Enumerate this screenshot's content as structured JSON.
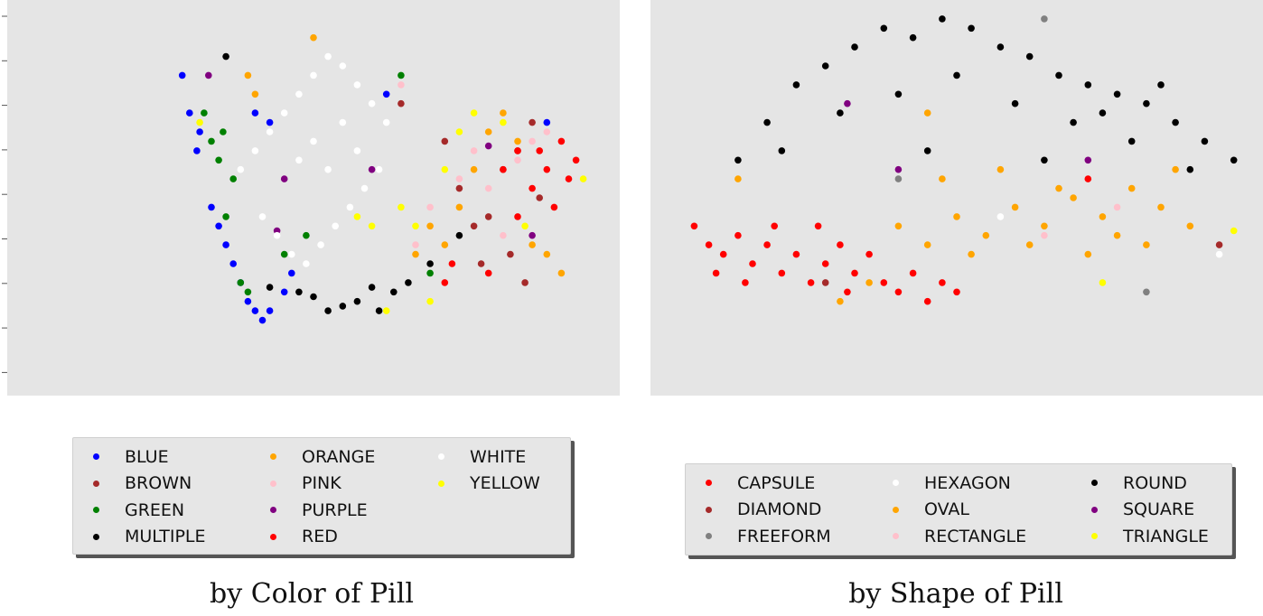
{
  "chart_data": [
    {
      "type": "scatter",
      "title": "by Color of Pill",
      "legend_placement": "below",
      "grid": false,
      "y_ticks_labeled": false,
      "series": [
        {
          "name": "BLUE",
          "color": "#0000ff",
          "points": [
            [
              -0.9,
              -1.3
            ],
            [
              -0.85,
              -0.9
            ],
            [
              -0.8,
              -0.5
            ],
            [
              -0.78,
              -0.7
            ],
            [
              -0.7,
              0.1
            ],
            [
              -0.65,
              0.3
            ],
            [
              -0.6,
              0.5
            ],
            [
              -0.55,
              0.7
            ],
            [
              -0.5,
              0.9
            ],
            [
              -0.45,
              1.1
            ],
            [
              -0.4,
              1.2
            ],
            [
              -0.35,
              1.3
            ],
            [
              -0.3,
              1.2
            ],
            [
              -0.3,
              -0.8
            ],
            [
              -0.4,
              -0.9
            ],
            [
              -0.2,
              1.0
            ],
            [
              -0.15,
              0.8
            ],
            [
              0.5,
              -1.1
            ],
            [
              1.6,
              -0.8
            ]
          ]
        },
        {
          "name": "BROWN",
          "color": "#a52a2a",
          "points": [
            [
              0.6,
              -1.0
            ],
            [
              0.9,
              -0.6
            ],
            [
              1.0,
              -0.1
            ],
            [
              1.1,
              0.3
            ],
            [
              1.15,
              0.7
            ],
            [
              1.2,
              0.2
            ],
            [
              1.3,
              -0.3
            ],
            [
              1.35,
              0.6
            ],
            [
              1.4,
              -0.5
            ],
            [
              1.45,
              0.9
            ],
            [
              1.5,
              -0.8
            ],
            [
              1.55,
              0.0
            ]
          ]
        },
        {
          "name": "GREEN",
          "color": "#008000",
          "points": [
            [
              -0.75,
              -0.9
            ],
            [
              -0.7,
              -0.6
            ],
            [
              -0.65,
              -0.4
            ],
            [
              -0.62,
              -0.7
            ],
            [
              -0.55,
              -0.2
            ],
            [
              -0.6,
              0.2
            ],
            [
              -0.5,
              0.9
            ],
            [
              -0.45,
              1.0
            ],
            [
              -0.2,
              0.6
            ],
            [
              -0.05,
              0.4
            ],
            [
              0.6,
              -1.3
            ],
            [
              0.8,
              0.8
            ]
          ]
        },
        {
          "name": "MULTIPLE",
          "color": "#000000",
          "points": [
            [
              -0.6,
              -1.5
            ],
            [
              -0.3,
              0.95
            ],
            [
              -0.1,
              1.0
            ],
            [
              0.0,
              1.05
            ],
            [
              0.1,
              1.2
            ],
            [
              0.2,
              1.15
            ],
            [
              0.3,
              1.1
            ],
            [
              0.4,
              0.95
            ],
            [
              0.45,
              1.2
            ],
            [
              0.55,
              1.0
            ],
            [
              0.65,
              0.9
            ],
            [
              0.8,
              0.7
            ],
            [
              1.0,
              0.4
            ]
          ]
        },
        {
          "name": "ORANGE",
          "color": "#ffa500",
          "points": [
            [
              -0.45,
              -1.3
            ],
            [
              -0.4,
              -1.1
            ],
            [
              0.0,
              -1.7
            ],
            [
              0.7,
              0.6
            ],
            [
              0.8,
              0.3
            ],
            [
              0.9,
              0.5
            ],
            [
              1.0,
              0.1
            ],
            [
              1.1,
              -0.3
            ],
            [
              1.2,
              -0.7
            ],
            [
              1.3,
              -0.9
            ],
            [
              1.4,
              -0.6
            ],
            [
              1.5,
              0.5
            ],
            [
              1.6,
              0.6
            ],
            [
              1.7,
              0.8
            ]
          ]
        },
        {
          "name": "PINK",
          "color": "#ffc0cb",
          "points": [
            [
              0.6,
              -1.2
            ],
            [
              0.7,
              0.5
            ],
            [
              0.8,
              0.1
            ],
            [
              1.0,
              -0.2
            ],
            [
              1.1,
              -0.5
            ],
            [
              1.2,
              -0.1
            ],
            [
              1.3,
              0.4
            ],
            [
              1.4,
              -0.4
            ],
            [
              1.5,
              -0.6
            ],
            [
              1.6,
              -0.7
            ]
          ]
        },
        {
          "name": "PURPLE",
          "color": "#800080",
          "points": [
            [
              -0.72,
              -1.3
            ],
            [
              -0.25,
              0.35
            ],
            [
              -0.2,
              -0.2
            ],
            [
              0.4,
              -0.3
            ],
            [
              1.2,
              -0.55
            ],
            [
              1.5,
              0.4
            ]
          ]
        },
        {
          "name": "RED",
          "color": "#ff0000",
          "points": [
            [
              1.3,
              -0.3
            ],
            [
              1.4,
              0.2
            ],
            [
              1.5,
              -0.1
            ],
            [
              1.55,
              -0.5
            ],
            [
              1.6,
              -0.3
            ],
            [
              1.65,
              0.1
            ],
            [
              1.7,
              -0.6
            ],
            [
              1.75,
              -0.2
            ],
            [
              1.8,
              -0.4
            ],
            [
              1.4,
              -0.5
            ],
            [
              1.2,
              0.8
            ],
            [
              0.9,
              0.9
            ],
            [
              0.95,
              0.7
            ]
          ]
        },
        {
          "name": "WHITE",
          "color": "#ffffff",
          "points": [
            [
              -0.5,
              -0.3
            ],
            [
              -0.4,
              -0.5
            ],
            [
              -0.3,
              -0.7
            ],
            [
              -0.2,
              -0.9
            ],
            [
              -0.1,
              -1.1
            ],
            [
              0.0,
              -1.3
            ],
            [
              0.1,
              -1.5
            ],
            [
              0.2,
              -1.4
            ],
            [
              0.3,
              -1.2
            ],
            [
              0.4,
              -1.0
            ],
            [
              0.5,
              -0.8
            ],
            [
              -0.35,
              0.2
            ],
            [
              -0.25,
              0.4
            ],
            [
              -0.15,
              0.6
            ],
            [
              -0.05,
              0.7
            ],
            [
              0.05,
              0.5
            ],
            [
              0.15,
              0.3
            ],
            [
              0.25,
              0.1
            ],
            [
              0.35,
              -0.1
            ],
            [
              0.45,
              -0.3
            ],
            [
              0.1,
              -0.3
            ],
            [
              0.0,
              -0.6
            ],
            [
              -0.1,
              -0.4
            ],
            [
              0.2,
              -0.8
            ],
            [
              0.3,
              -0.5
            ]
          ]
        },
        {
          "name": "YELLOW",
          "color": "#ffff00",
          "points": [
            [
              -0.78,
              -0.8
            ],
            [
              0.3,
              0.2
            ],
            [
              0.4,
              0.3
            ],
            [
              0.6,
              0.1
            ],
            [
              0.7,
              0.3
            ],
            [
              0.9,
              -0.3
            ],
            [
              1.0,
              -0.7
            ],
            [
              1.1,
              -0.9
            ],
            [
              1.3,
              -0.8
            ],
            [
              1.45,
              0.3
            ],
            [
              1.85,
              -0.2
            ],
            [
              0.8,
              1.1
            ],
            [
              0.5,
              1.2
            ]
          ]
        }
      ]
    },
    {
      "type": "scatter",
      "title": "by Shape of Pill",
      "legend_placement": "below",
      "grid": false,
      "series": [
        {
          "name": "CAPSULE",
          "color": "#ff0000",
          "points": [
            [
              -1.8,
              0.3
            ],
            [
              -1.7,
              0.5
            ],
            [
              -1.6,
              0.6
            ],
            [
              -1.5,
              0.4
            ],
            [
              -1.4,
              0.7
            ],
            [
              -1.3,
              0.5
            ],
            [
              -1.2,
              0.8
            ],
            [
              -1.1,
              0.6
            ],
            [
              -1.0,
              0.9
            ],
            [
              -0.9,
              0.7
            ],
            [
              -0.8,
              0.5
            ],
            [
              -0.7,
              0.8
            ],
            [
              -0.6,
              0.6
            ],
            [
              -0.5,
              0.9
            ],
            [
              -0.4,
              1.0
            ],
            [
              -0.3,
              0.8
            ],
            [
              -0.2,
              1.1
            ],
            [
              -0.1,
              0.9
            ],
            [
              0.0,
              1.0
            ],
            [
              -1.65,
              0.8
            ],
            [
              -1.45,
              0.9
            ],
            [
              -1.25,
              0.3
            ],
            [
              -0.95,
              0.3
            ],
            [
              -0.75,
              1.0
            ],
            [
              0.9,
              -0.2
            ]
          ]
        },
        {
          "name": "DIAMOND",
          "color": "#a52a2a",
          "points": [
            [
              -0.9,
              0.9
            ],
            [
              1.8,
              0.5
            ]
          ]
        },
        {
          "name": "FREEFORM",
          "color": "#808080",
          "points": [
            [
              1.3,
              1.0
            ],
            [
              -0.4,
              -0.2
            ],
            [
              0.6,
              -1.9
            ]
          ]
        },
        {
          "name": "HEXAGON",
          "color": "#ffffff",
          "points": [
            [
              1.8,
              0.6
            ],
            [
              0.3,
              0.2
            ]
          ]
        },
        {
          "name": "OVAL",
          "color": "#ffa500",
          "points": [
            [
              -0.4,
              0.3
            ],
            [
              -0.2,
              0.5
            ],
            [
              0.0,
              0.2
            ],
            [
              0.2,
              0.4
            ],
            [
              0.4,
              0.1
            ],
            [
              0.6,
              0.3
            ],
            [
              0.8,
              0.0
            ],
            [
              1.0,
              0.2
            ],
            [
              1.2,
              -0.1
            ],
            [
              1.4,
              0.1
            ],
            [
              1.6,
              0.3
            ],
            [
              0.1,
              0.6
            ],
            [
              0.5,
              0.5
            ],
            [
              0.9,
              0.6
            ],
            [
              1.1,
              0.4
            ],
            [
              1.3,
              0.5
            ],
            [
              -0.8,
              1.1
            ],
            [
              -0.6,
              0.9
            ],
            [
              -0.1,
              -0.2
            ],
            [
              0.3,
              -0.3
            ],
            [
              0.7,
              -0.1
            ],
            [
              1.5,
              -0.3
            ],
            [
              -0.2,
              -0.9
            ],
            [
              -1.5,
              -0.2
            ]
          ]
        },
        {
          "name": "RECTANGLE",
          "color": "#ffc0cb",
          "points": [
            [
              0.6,
              0.4
            ],
            [
              1.1,
              0.1
            ]
          ]
        },
        {
          "name": "ROUND",
          "color": "#000000",
          "points": [
            [
              -1.3,
              -0.8
            ],
            [
              -1.1,
              -1.2
            ],
            [
              -0.9,
              -1.4
            ],
            [
              -0.7,
              -1.6
            ],
            [
              -0.5,
              -1.8
            ],
            [
              -0.3,
              -1.7
            ],
            [
              -0.1,
              -1.9
            ],
            [
              0.1,
              -1.8
            ],
            [
              0.3,
              -1.6
            ],
            [
              0.5,
              -1.5
            ],
            [
              0.7,
              -1.3
            ],
            [
              0.9,
              -1.2
            ],
            [
              1.1,
              -1.1
            ],
            [
              1.3,
              -1.0
            ],
            [
              1.5,
              -0.8
            ],
            [
              1.7,
              -0.6
            ],
            [
              1.9,
              -0.4
            ],
            [
              -1.2,
              -0.5
            ],
            [
              -0.8,
              -0.9
            ],
            [
              -0.4,
              -1.1
            ],
            [
              0.0,
              -1.3
            ],
            [
              0.4,
              -1.0
            ],
            [
              0.8,
              -0.8
            ],
            [
              1.2,
              -0.6
            ],
            [
              1.6,
              -0.3
            ],
            [
              -1.5,
              -0.4
            ],
            [
              -0.2,
              -0.5
            ],
            [
              0.6,
              -0.4
            ],
            [
              1.0,
              -0.9
            ],
            [
              1.4,
              -1.2
            ]
          ]
        },
        {
          "name": "SQUARE",
          "color": "#800080",
          "points": [
            [
              -0.75,
              -1.0
            ],
            [
              -0.4,
              -0.3
            ],
            [
              0.9,
              -0.4
            ]
          ]
        },
        {
          "name": "TRIANGLE",
          "color": "#ffff00",
          "points": [
            [
              1.9,
              0.35
            ],
            [
              1.0,
              0.9
            ]
          ]
        }
      ]
    }
  ],
  "captions": {
    "left": "by Color of Pill",
    "right": "by Shape of Pill"
  }
}
